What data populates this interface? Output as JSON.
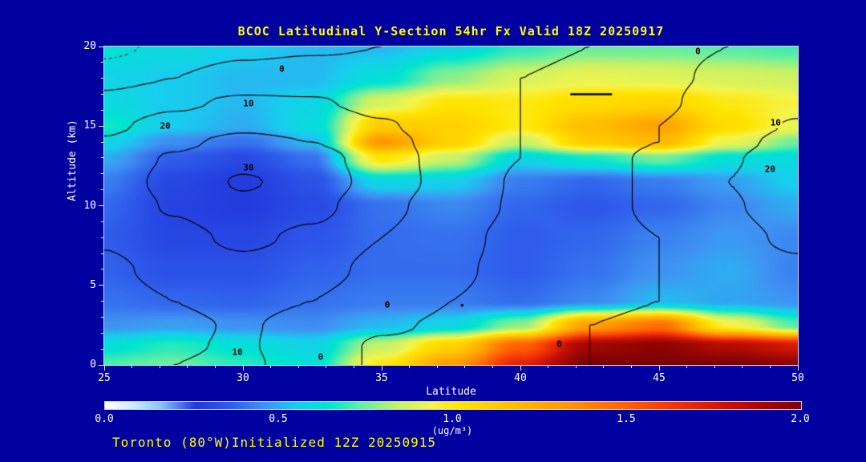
{
  "title": "BCOC Latitudinal Y-Section 54hr  Fx Valid 18Z 20250917",
  "footer": "Toronto (80°W)Initialized 12Z 20250915",
  "colors": {
    "background": "#0101a0",
    "title_text": "#ffff00",
    "footer_text": "#ffff00",
    "axis_text": "#ffffff",
    "tick_mark": "#e8e8e8",
    "frame": "#d8d8f0",
    "contour_line": "#000000",
    "contour_label": "#000000"
  },
  "chart_data": {
    "type": "heatmap",
    "title": "BCOC Latitudinal Y-Section 54hr  Fx Valid 18Z 20250917",
    "xlabel": "Latitude",
    "ylabel": "Altitude (km)",
    "x_range": [
      25,
      50
    ],
    "y_range": [
      0,
      20
    ],
    "x_ticks": [
      25,
      30,
      35,
      40,
      45,
      50
    ],
    "y_ticks": [
      0,
      5,
      10,
      15,
      20
    ],
    "minor_tick_step": 1,
    "grid": {
      "lat": [
        25,
        27.5,
        30,
        32.5,
        35,
        37.5,
        40,
        42.5,
        45,
        47.5,
        50
      ],
      "alt": [
        20,
        18,
        16.5,
        15,
        14,
        13,
        11.5,
        10,
        8,
        6,
        4,
        2.5,
        1.2,
        0
      ]
    },
    "fill_field_ugm3": [
      [
        0.62,
        0.6,
        0.56,
        0.52,
        0.52,
        0.58,
        0.68,
        0.74,
        0.74,
        0.72,
        0.7
      ],
      [
        0.58,
        0.55,
        0.52,
        0.52,
        0.62,
        0.78,
        0.88,
        0.92,
        0.9,
        0.88,
        0.86
      ],
      [
        0.6,
        0.55,
        0.52,
        0.58,
        0.88,
        1.02,
        1.0,
        1.05,
        1.08,
        1.0,
        0.95
      ],
      [
        0.66,
        0.55,
        0.5,
        0.6,
        1.12,
        1.1,
        1.0,
        1.18,
        1.28,
        1.05,
        0.92
      ],
      [
        0.58,
        0.45,
        0.4,
        0.52,
        1.32,
        1.1,
        0.85,
        1.12,
        1.2,
        0.92,
        0.75
      ],
      [
        0.5,
        0.36,
        0.31,
        0.4,
        1.02,
        0.85,
        0.58,
        0.66,
        0.75,
        0.62,
        0.6
      ],
      [
        0.42,
        0.3,
        0.27,
        0.33,
        0.58,
        0.56,
        0.42,
        0.38,
        0.42,
        0.48,
        0.56
      ],
      [
        0.38,
        0.29,
        0.27,
        0.31,
        0.4,
        0.44,
        0.38,
        0.35,
        0.38,
        0.44,
        0.5
      ],
      [
        0.36,
        0.3,
        0.3,
        0.34,
        0.39,
        0.4,
        0.36,
        0.38,
        0.43,
        0.47,
        0.44
      ],
      [
        0.37,
        0.33,
        0.33,
        0.37,
        0.39,
        0.39,
        0.36,
        0.4,
        0.46,
        0.5,
        0.43
      ],
      [
        0.4,
        0.38,
        0.37,
        0.4,
        0.42,
        0.42,
        0.39,
        0.44,
        0.52,
        0.49,
        0.46
      ],
      [
        0.46,
        0.48,
        0.46,
        0.45,
        0.52,
        0.58,
        0.78,
        1.3,
        1.45,
        0.95,
        0.72
      ],
      [
        0.62,
        0.68,
        0.62,
        0.58,
        0.85,
        1.1,
        1.5,
        1.9,
        1.95,
        1.85,
        1.75
      ],
      [
        0.72,
        0.75,
        0.68,
        0.62,
        1.0,
        1.3,
        1.7,
        2.0,
        2.0,
        2.0,
        1.95
      ]
    ],
    "overlay_contour_field": [
      [
        -6,
        -4,
        -2,
        -1,
        0,
        1,
        1,
        0,
        -1,
        0,
        1
      ],
      [
        -3,
        0,
        3,
        4,
        3,
        2,
        0,
        -1,
        -1,
        1,
        3
      ],
      [
        3,
        8,
        12,
        11,
        7,
        3,
        0,
        -1,
        -1,
        3,
        7
      ],
      [
        8,
        14,
        18,
        16,
        11,
        5,
        0,
        -2,
        0,
        5,
        11
      ],
      [
        11,
        18,
        23,
        20,
        13,
        6,
        0,
        -2,
        0,
        7,
        14
      ],
      [
        13,
        21,
        27,
        24,
        15,
        6,
        0,
        -2,
        1,
        9,
        17
      ],
      [
        14,
        23,
        31,
        26,
        16,
        6,
        -1,
        -2,
        1,
        10,
        19
      ],
      [
        13,
        21,
        28,
        23,
        13,
        4,
        -1,
        -2,
        1,
        9,
        16
      ],
      [
        11,
        17,
        22,
        18,
        10,
        2,
        -2,
        -2,
        0,
        7,
        12
      ],
      [
        8,
        13,
        17,
        14,
        7,
        1,
        -2,
        -1,
        0,
        5,
        8
      ],
      [
        6,
        10,
        13,
        10,
        4,
        0,
        -2,
        -1,
        0,
        3,
        5
      ],
      [
        5,
        8,
        11,
        6,
        1,
        -1,
        -1,
        0,
        1,
        2,
        3
      ],
      [
        6,
        9,
        11,
        4,
        -1,
        -2,
        -1,
        0,
        1,
        1,
        2
      ],
      [
        7,
        10,
        12,
        4,
        -1,
        -2,
        -1,
        0,
        1,
        1,
        2
      ]
    ],
    "contour_levels": [
      -5,
      0,
      10,
      20,
      30
    ],
    "negative_levels_dashed": true,
    "contour_labels": [
      {
        "text": "0",
        "lat": 31.4,
        "alt": 18.6
      },
      {
        "text": "10",
        "lat": 30.2,
        "alt": 16.4
      },
      {
        "text": "20",
        "lat": 27.2,
        "alt": 15.0
      },
      {
        "text": "30",
        "lat": 30.2,
        "alt": 12.4
      },
      {
        "text": "0",
        "lat": 46.4,
        "alt": 19.7
      },
      {
        "text": "10",
        "lat": 49.2,
        "alt": 15.2
      },
      {
        "text": "20",
        "lat": 49.0,
        "alt": 12.3
      },
      {
        "text": "0",
        "lat": 35.2,
        "alt": 3.8
      },
      {
        "text": "10",
        "lat": 29.8,
        "alt": 0.8
      },
      {
        "text": "0",
        "lat": 32.8,
        "alt": 0.5
      },
      {
        "text": "0",
        "lat": 41.4,
        "alt": 1.3
      }
    ],
    "annotations": {
      "dash_segment": {
        "lat_from": 41.8,
        "lat_to": 43.3,
        "alt": 17.0
      },
      "dot": {
        "lat": 37.9,
        "alt": 3.75
      }
    },
    "colorbar": {
      "min": 0,
      "max": 2,
      "tick_labels": [
        "0.0",
        "0.5",
        "1.0",
        "1.5",
        "2.0"
      ],
      "label": "(ug/m³)",
      "stops": [
        [
          0.0,
          "#ffffff"
        ],
        [
          0.08,
          "#cfeafc"
        ],
        [
          0.16,
          "#8cc4f4"
        ],
        [
          0.26,
          "#2238dc"
        ],
        [
          0.36,
          "#2f5ceb"
        ],
        [
          0.46,
          "#3f92f2"
        ],
        [
          0.55,
          "#19ccee"
        ],
        [
          0.64,
          "#00e4d0"
        ],
        [
          0.74,
          "#66eea0"
        ],
        [
          0.84,
          "#c4f168"
        ],
        [
          0.94,
          "#f4f44c"
        ],
        [
          1.02,
          "#ffe400"
        ],
        [
          1.18,
          "#ffbe00"
        ],
        [
          1.34,
          "#ff9400"
        ],
        [
          1.5,
          "#ff6000"
        ],
        [
          1.65,
          "#f03000"
        ],
        [
          1.8,
          "#c41000"
        ],
        [
          2.0,
          "#7c0000"
        ]
      ]
    }
  }
}
